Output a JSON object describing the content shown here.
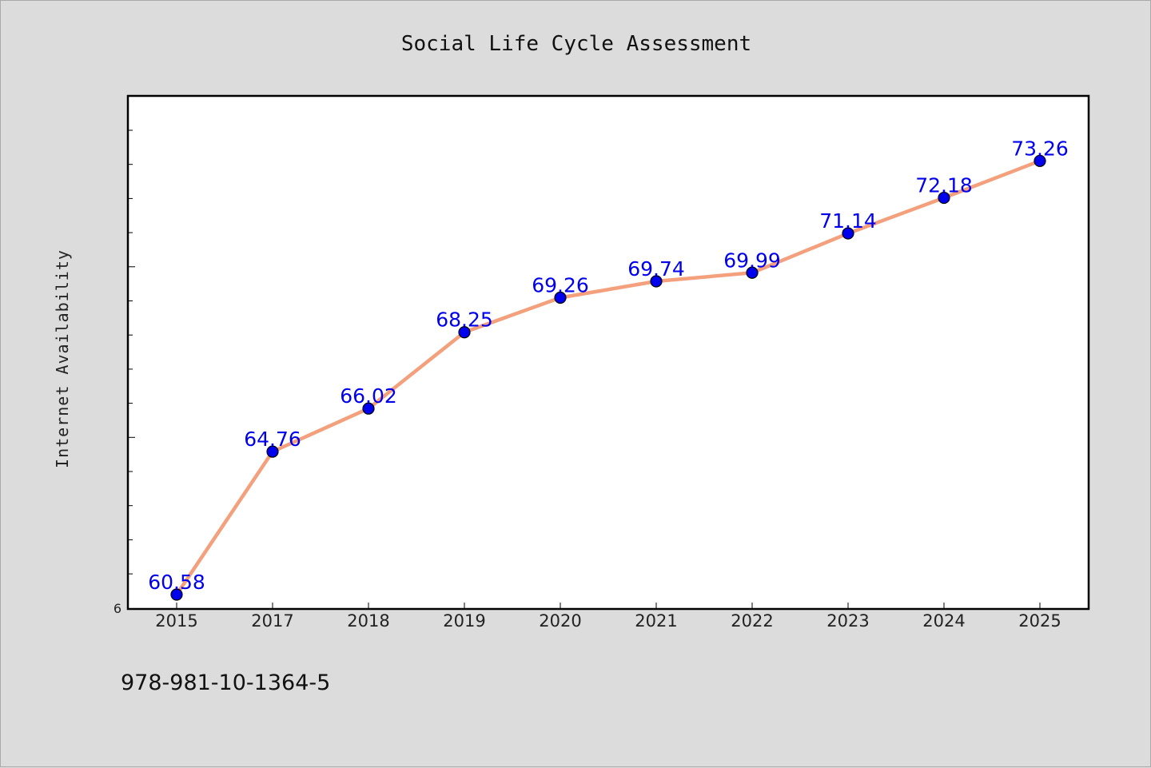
{
  "footer_text": "978-981-10-1364-5",
  "chart_data": {
    "type": "line",
    "title": "Social Life Cycle Assessment",
    "xlabel": "",
    "ylabel": "Internet Availability",
    "categories": [
      "2015",
      "2017",
      "2018",
      "2019",
      "2020",
      "2021",
      "2022",
      "2023",
      "2024",
      "2025"
    ],
    "series": [
      {
        "values": [
          60.58,
          64.76,
          66.02,
          68.25,
          69.26,
          69.74,
          69.99,
          71.14,
          72.18,
          73.26
        ],
        "data_labels": [
          "60.58",
          "64.76",
          "66.02",
          "68.25",
          "69.26",
          "69.74",
          "69.99",
          "71.14",
          "72.18",
          "73.26"
        ]
      }
    ],
    "y_tick_label": "6",
    "ylim": [
      60.16,
      75.16
    ],
    "grid": false,
    "legend": "none",
    "colors": {
      "line": "#f4a07c",
      "marker_fill": "#0000ee",
      "marker_edge": "#000000",
      "data_label": "#0000ee",
      "plot_background": "#ffffff",
      "figure_background": "#dcdcdc"
    }
  }
}
